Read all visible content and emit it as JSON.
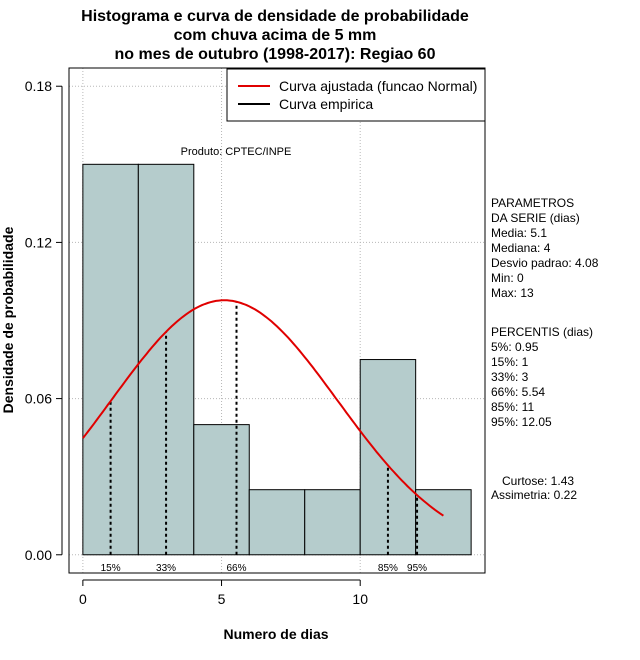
{
  "chart_data": {
    "type": "bar",
    "title": [
      "Histograma e curva de densidade de probabilidade",
      "com chuva acima de 5 mm",
      "no mes de outubro (1998-2017): Regiao 60"
    ],
    "xlabel": "Numero de dias",
    "ylabel": "Densidade de probabilidade",
    "xlim": [
      -0.5,
      14.5
    ],
    "ylim": [
      -0.007,
      0.187
    ],
    "x_ticks": [
      0,
      5,
      10
    ],
    "x_tick_labels": [
      "0",
      "5",
      "10"
    ],
    "y_ticks": [
      0.0,
      0.06,
      0.12,
      0.18
    ],
    "y_tick_labels": [
      "0.00",
      "0.06",
      "0.12",
      "0.18"
    ],
    "grid": true,
    "bars": [
      {
        "x0": 0,
        "x1": 2,
        "density": 0.15
      },
      {
        "x0": 2,
        "x1": 4,
        "density": 0.15
      },
      {
        "x0": 4,
        "x1": 6,
        "density": 0.05
      },
      {
        "x0": 6,
        "x1": 8,
        "density": 0.025
      },
      {
        "x0": 8,
        "x1": 10,
        "density": 0.025
      },
      {
        "x0": 10,
        "x1": 12,
        "density": 0.075
      },
      {
        "x0": 12,
        "x1": 14,
        "density": 0.025
      }
    ],
    "normal_curve": {
      "name": "Curva ajustada (funcao Normal)",
      "mean": 5.1,
      "sd": 4.08,
      "x_range": [
        0,
        13
      ],
      "color": "#e00000"
    },
    "empirical_curve": {
      "name": "Curva empirica",
      "color": "#000000"
    },
    "percentile_lines": [
      {
        "label": "15%",
        "x": 1
      },
      {
        "label": "33%",
        "x": 3
      },
      {
        "label": "66%",
        "x": 5.54
      },
      {
        "label": "85%",
        "x": 11
      },
      {
        "label": "95%",
        "x": 12.05
      }
    ],
    "product_note": "Produto: CPTEC/INPE",
    "legend_position": "top-right",
    "bar_color": "#b5cccc"
  },
  "side_panel": {
    "parametros": [
      "PARAMETROS",
      "DA SERIE (dias)",
      "  Media: 5.1",
      "  Mediana: 4",
      "  Desvio padrao: 4.08",
      "  Min: 0",
      "  Max: 13"
    ],
    "percentis": [
      "PERCENTIS (dias)",
      "  5%: 0.95",
      "  15%: 1",
      "  33%: 3",
      "  66%: 5.54",
      "  85%: 11",
      "  95%: 12.05"
    ],
    "curtose": "Curtose: 1.43",
    "assimetria": "Assimetria: 0.22"
  }
}
